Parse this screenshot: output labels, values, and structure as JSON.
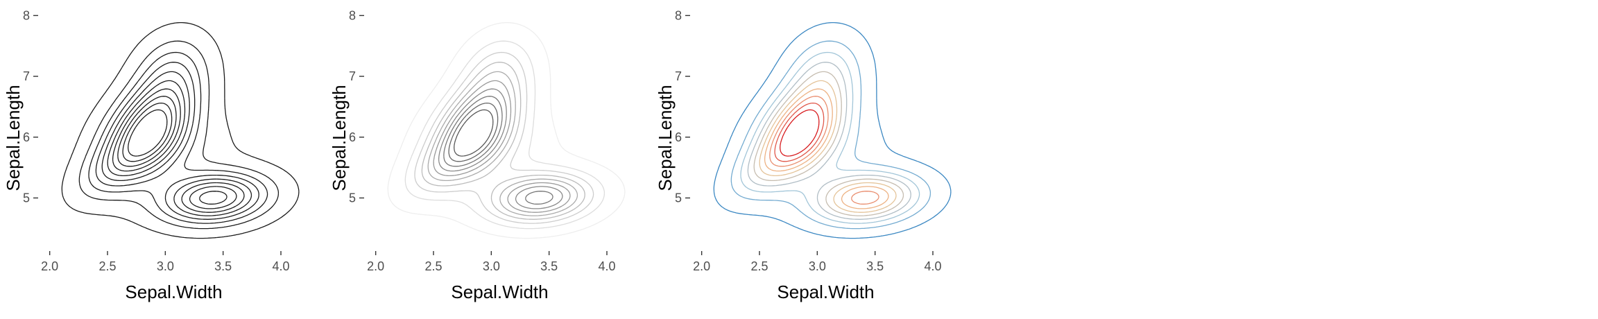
{
  "chart_data": [
    {
      "type": "contour",
      "panel": "black",
      "xlabel": "Sepal.Width",
      "ylabel": "Sepal.Length",
      "xticks": [
        "2.0",
        "2.5",
        "3.0",
        "3.5",
        "4.0"
      ],
      "yticks": [
        "5",
        "6",
        "7",
        "8"
      ],
      "xlim": [
        1.93,
        4.24
      ],
      "ylim": [
        4.15,
        8.05
      ],
      "grid": false,
      "legend": "none",
      "line_color": "#1a1a1a",
      "density_peaks": [
        {
          "name": "main",
          "x": 2.87,
          "y": 6.14
        },
        {
          "name": "secondary",
          "x": 3.42,
          "y": 5.0
        }
      ],
      "levels": 10
    },
    {
      "type": "contour",
      "panel": "grey-gradient",
      "xlabel": "Sepal.Width",
      "ylabel": "Sepal.Length",
      "xticks": [
        "2.0",
        "2.5",
        "3.0",
        "3.5",
        "4.0"
      ],
      "yticks": [
        "5",
        "6",
        "7",
        "8"
      ],
      "xlim": [
        1.93,
        4.24
      ],
      "ylim": [
        4.15,
        8.05
      ],
      "grid": false,
      "legend": "none",
      "colors_low_to_high": [
        "#eeeeee",
        "#555555"
      ],
      "levels": 10
    },
    {
      "type": "contour",
      "panel": "color-gradient",
      "xlabel": "Sepal.Width",
      "ylabel": "Sepal.Length",
      "xticks": [
        "2.0",
        "2.5",
        "3.0",
        "3.5",
        "4.0"
      ],
      "yticks": [
        "5",
        "6",
        "7",
        "8"
      ],
      "xlim": [
        1.93,
        4.24
      ],
      "ylim": [
        4.15,
        8.05
      ],
      "grid": false,
      "legend": "none",
      "colors_low_to_high": [
        "#3a87c2",
        "#9ec6dc",
        "#b9b9b9",
        "#f0c68e",
        "#e8876b",
        "#d7191c"
      ],
      "levels": 10
    }
  ]
}
